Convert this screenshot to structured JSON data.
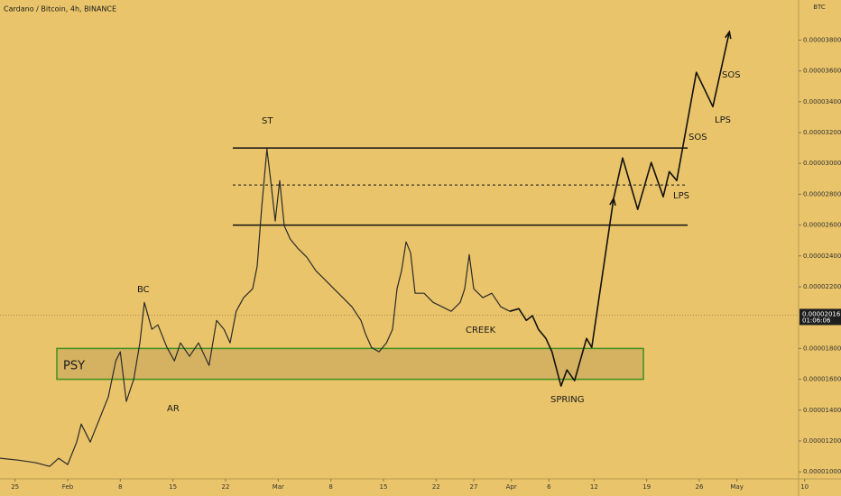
{
  "chart_data": {
    "type": "line",
    "title": "Cardano / Bitcoin, 4h, BINANCE",
    "currency": "BTC",
    "color": "#2b2b2b",
    "xlim": [
      -2,
      106
    ],
    "ylim": [
      9.6e-06,
      4.06e-05
    ],
    "xticks": [
      {
        "value": 0,
        "label": "25"
      },
      {
        "value": 7,
        "label": "Feb"
      },
      {
        "value": 14,
        "label": "8"
      },
      {
        "value": 21,
        "label": "15"
      },
      {
        "value": 28,
        "label": "22"
      },
      {
        "value": 35,
        "label": "Mar"
      },
      {
        "value": 42,
        "label": "8"
      },
      {
        "value": 49,
        "label": "15"
      },
      {
        "value": 56,
        "label": "22"
      },
      {
        "value": 61,
        "label": "27"
      },
      {
        "value": 66,
        "label": "Apr"
      },
      {
        "value": 71,
        "label": "6"
      },
      {
        "value": 77,
        "label": "12"
      },
      {
        "value": 84,
        "label": "19"
      },
      {
        "value": 91,
        "label": "26"
      },
      {
        "value": 96,
        "label": "May"
      },
      {
        "value": 105,
        "label": "10"
      }
    ],
    "yticks": [
      {
        "value": 1e-05,
        "label": "0.00001000"
      },
      {
        "value": 1.2e-05,
        "label": "0.00001200"
      },
      {
        "value": 1.4e-05,
        "label": "0.00001400"
      },
      {
        "value": 1.6e-05,
        "label": "0.00001600"
      },
      {
        "value": 1.8e-05,
        "label": "0.00001800"
      },
      {
        "value": 2.2e-05,
        "label": "0.00002200"
      },
      {
        "value": 2.4e-05,
        "label": "0.00002400"
      },
      {
        "value": 2.6e-05,
        "label": "0.00002600"
      },
      {
        "value": 2.8e-05,
        "label": "0.00002800"
      },
      {
        "value": 3e-05,
        "label": "0.00003000"
      },
      {
        "value": 3.2e-05,
        "label": "0.00003200"
      },
      {
        "value": 3.4e-05,
        "label": "0.00003400"
      },
      {
        "value": 3.6e-05,
        "label": "0.00003600"
      },
      {
        "value": 3.8e-05,
        "label": "0.00003800"
      }
    ],
    "series": [
      {
        "color": "#2b2b2b",
        "x": [
          -2.0,
          0.4,
          2.8,
          4.6,
          5.8,
          7.0,
          8.2,
          8.8,
          10.0,
          11.2,
          12.4,
          13.4,
          14.0,
          14.8,
          15.8,
          16.6,
          17.2,
          18.2,
          19.0,
          20.2,
          21.2,
          22.0,
          23.2,
          24.4,
          25.8,
          26.8,
          27.8,
          28.6,
          29.4,
          30.4,
          31.6,
          32.2,
          32.8,
          33.5,
          34.0,
          34.6,
          35.2,
          35.8,
          36.6,
          37.6,
          38.8,
          40.0,
          41.2,
          42.4,
          43.6,
          44.8,
          46.0,
          46.6,
          47.4,
          48.4,
          49.4,
          50.2,
          50.8,
          51.4,
          52.0,
          52.6,
          53.2,
          54.4,
          55.6,
          56.8,
          58.0,
          59.2,
          59.8,
          60.4,
          61.0,
          62.2,
          63.4,
          64.6,
          65.8
        ],
        "values": [
          1.088e-05,
          1.076e-05,
          1.058e-05,
          1.035e-05,
          1.088e-05,
          1.047e-05,
          1.193e-05,
          1.31e-05,
          1.193e-05,
          1.339e-05,
          1.485e-05,
          1.719e-05,
          1.778e-05,
          1.456e-05,
          1.602e-05,
          1.836e-05,
          2.099e-05,
          1.924e-05,
          1.953e-05,
          1.807e-05,
          1.719e-05,
          1.836e-05,
          1.749e-05,
          1.836e-05,
          1.69e-05,
          1.982e-05,
          1.924e-05,
          1.836e-05,
          2.041e-05,
          2.129e-05,
          2.187e-05,
          2.333e-05,
          2.713e-05,
          3.094e-05,
          2.889e-05,
          2.626e-05,
          2.889e-05,
          2.596e-05,
          2.509e-05,
          2.45e-05,
          2.392e-05,
          2.304e-05,
          2.246e-05,
          2.187e-05,
          2.129e-05,
          2.07e-05,
          1.982e-05,
          1.895e-05,
          1.807e-05,
          1.778e-05,
          1.836e-05,
          1.924e-05,
          2.187e-05,
          2.304e-05,
          2.491e-05,
          2.421e-05,
          2.158e-05,
          2.158e-05,
          2.099e-05,
          2.07e-05,
          2.041e-05,
          2.099e-05,
          2.187e-05,
          2.409e-05,
          2.187e-05,
          2.129e-05,
          2.158e-05,
          2.07e-05,
          2.041e-05
        ]
      },
      {
        "color": "#111111",
        "x": [
          65.8,
          67.0,
          68.0,
          68.8,
          69.6,
          70.6,
          71.4,
          72.6,
          73.4,
          74.4,
          76.0,
          76.7,
          79.6,
          80.8,
          82.8,
          84.6,
          86.2,
          87.0,
          88.0,
          90.6,
          92.8,
          95.0
        ],
        "values": [
          2.041e-05,
          2.058e-05,
          1.982e-05,
          2.012e-05,
          1.924e-05,
          1.865e-05,
          1.778e-05,
          1.556e-05,
          1.661e-05,
          1.591e-05,
          1.865e-05,
          1.807e-05,
          2.772e-05,
          3.035e-05,
          2.702e-05,
          3.006e-05,
          2.784e-05,
          2.947e-05,
          2.889e-05,
          3.591e-05,
          3.368e-05,
          3.854e-05
        ]
      }
    ],
    "levels": [
      3.1e-05,
      2.86e-05,
      2.6e-05
    ],
    "zone": [
      1.6e-05,
      1.8e-05
    ],
    "last_price": {
      "value": 2.016e-05,
      "label": "0.00002016"
    },
    "countdown": "01:06:06",
    "annotations": [
      "PSY",
      "BC",
      "AR",
      "ST",
      "CREEK",
      "SPRING",
      "LPS",
      "SOS",
      "LPS",
      "SOS"
    ]
  }
}
